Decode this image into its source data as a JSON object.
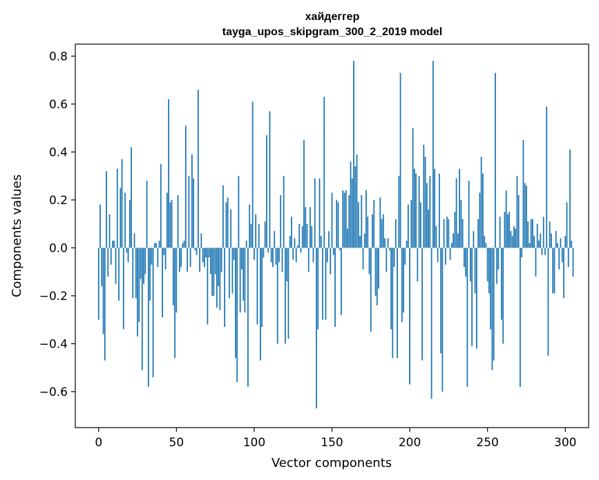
{
  "chart_data": {
    "type": "bar",
    "title": "хайдеггер",
    "subtitle": "tayga_upos_skipgram_300_2_2019 model",
    "xlabel": "Vector components",
    "ylabel": "Components values",
    "xlim": [
      -15,
      315
    ],
    "ylim": [
      -0.75,
      0.85
    ],
    "x_ticks": [
      0,
      50,
      100,
      150,
      200,
      250,
      300
    ],
    "x_tick_labels": [
      "0",
      "50",
      "100",
      "150",
      "200",
      "250",
      "300"
    ],
    "y_ticks": [
      -0.6,
      -0.4,
      -0.2,
      0.0,
      0.2,
      0.4,
      0.6,
      0.8
    ],
    "y_tick_labels": [
      "−0.6",
      "−0.4",
      "−0.2",
      "0.0",
      "0.2",
      "0.4",
      "0.6",
      "0.8"
    ],
    "bar_color": "#1f77b4",
    "grid": false,
    "values": [
      -0.3,
      0.18,
      -0.16,
      -0.36,
      -0.47,
      0.32,
      -0.12,
      0.14,
      -0.07,
      0.03,
      0.03,
      -0.15,
      0.33,
      -0.22,
      0.25,
      0.37,
      -0.34,
      0.23,
      -0.02,
      -0.06,
      0.2,
      0.42,
      -0.21,
      0.06,
      -0.21,
      -0.37,
      -0.31,
      -0.13,
      -0.51,
      -0.15,
      -0.11,
      0.28,
      -0.58,
      -0.22,
      -0.07,
      -0.54,
      0.02,
      0.02,
      -0.08,
      0.03,
      0.35,
      -0.29,
      -0.03,
      -0.09,
      0.23,
      0.62,
      0.19,
      0.2,
      -0.24,
      -0.46,
      -0.27,
      0.22,
      -0.1,
      -0.08,
      0.02,
      0.03,
      0.51,
      -0.1,
      0.3,
      -0.08,
      0.39,
      0.29,
      -0.01,
      -0.03,
      0.66,
      -0.1,
      0.06,
      -0.06,
      -0.08,
      -0.04,
      -0.32,
      -0.04,
      -0.11,
      -0.2,
      -0.2,
      -0.11,
      -0.25,
      -0.16,
      -0.26,
      -0.1,
      0.26,
      -0.33,
      0.19,
      0.21,
      -0.21,
      0.16,
      -0.19,
      -0.05,
      -0.46,
      -0.56,
      0.3,
      -0.27,
      -0.09,
      -0.22,
      -0.27,
      0.03,
      -0.58,
      0.18,
      0.1,
      0.61,
      -0.05,
      0.14,
      -0.32,
      0.1,
      -0.47,
      -0.33,
      -0.04,
      0.11,
      0.47,
      -0.02,
      0.57,
      -0.06,
      -0.08,
      0.07,
      -0.07,
      -0.4,
      -0.06,
      0.22,
      -0.1,
      0.3,
      -0.4,
      -0.14,
      -0.38,
      0.05,
      0.13,
      -0.05,
      0.04,
      -0.06,
      0.01,
      0.1,
      -0.02,
      0.09,
      0.45,
      0.17,
      0.1,
      -0.1,
      0.17,
      0.09,
      -0.06,
      0.29,
      -0.67,
      -0.34,
      0.29,
      0.05,
      -0.3,
      0.63,
      -0.3,
      -0.06,
      0.07,
      -0.11,
      0.23,
      -0.03,
      -0.33,
      0.2,
      0.19,
      -0.01,
      -0.28,
      0.24,
      0.23,
      0.24,
      0.08,
      0.22,
      0.36,
      0.29,
      0.78,
      0.34,
      0.39,
      0.19,
      0.05,
      0.22,
      -0.09,
      0.06,
      0.24,
      0.13,
      -0.11,
      -0.35,
      0.14,
      0.2,
      -0.2,
      -0.24,
      -0.17,
      0.21,
      0.12,
      0.14,
      0.04,
      -0.1,
      0.04,
      -0.01,
      -0.34,
      -0.46,
      -0.08,
      0.12,
      -0.46,
      0.3,
      0.73,
      -0.31,
      -0.27,
      -0.07,
      0.03,
      0.18,
      -0.57,
      0.2,
      0.5,
      0.33,
      0.31,
      -0.14,
      0.3,
      0.19,
      -0.47,
      0.43,
      0.38,
      0.27,
      0.16,
      0.3,
      -0.63,
      0.78,
      0.33,
      0.09,
      -0.06,
      0.31,
      -0.44,
      -0.6,
      0.12,
      -0.07,
      0.13,
      0.12,
      -0.05,
      0.02,
      0.06,
      0.15,
      0.29,
      0.06,
      0.33,
      0.2,
      0.12,
      -0.08,
      -0.12,
      -0.58,
      0.28,
      -0.14,
      -0.41,
      0.07,
      -0.19,
      -0.42,
      0.12,
      0.23,
      0.38,
      0.31,
      0.05,
      0.02,
      -0.14,
      -0.19,
      -0.34,
      -0.51,
      -0.47,
      0.73,
      -0.15,
      -0.09,
      0.13,
      -0.3,
      -0.4,
      0.15,
      0.24,
      0.14,
      0.15,
      0.07,
      0.05,
      0.09,
      0.08,
      0.3,
      0.22,
      -0.58,
      -0.04,
      0.45,
      0.27,
      0.26,
      0.11,
      0.02,
      0.12,
      0.12,
      0.05,
      -0.12,
      0.1,
      0.03,
      0.06,
      -0.03,
      0.13,
      -0.03,
      0.59,
      -0.45,
      0.11,
      0.06,
      -0.19,
      -0.19,
      0.07,
      0.02,
      -0.09,
      0.04,
      -0.06,
      -0.21,
      0.05,
      0.19,
      -0.08,
      0.41,
      0.03,
      -0.12
    ]
  }
}
